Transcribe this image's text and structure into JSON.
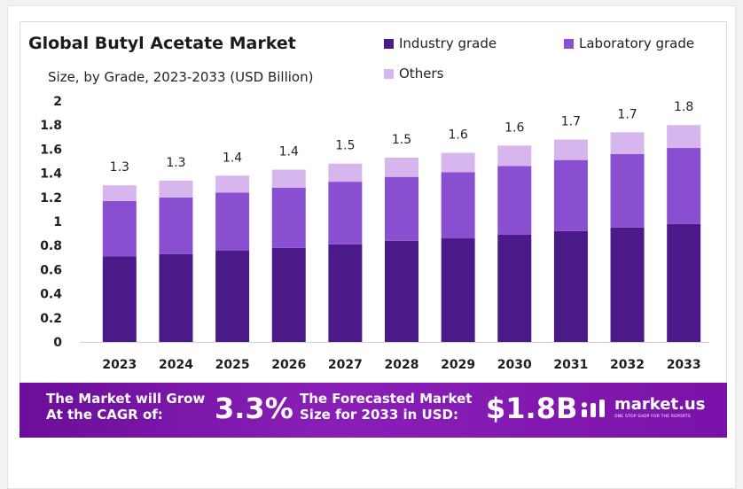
{
  "colors": {
    "industry": "#4b1a89",
    "laboratory": "#8a4fd1",
    "others": "#d7b6ee",
    "footer": "#7a12a9"
  },
  "chart_data": {
    "type": "bar",
    "stacked": true,
    "title": "Global Butyl Acetate Market",
    "subtitle": "Size, by Grade, 2023-2033 (USD Billion)",
    "categories": [
      "2023",
      "2024",
      "2025",
      "2026",
      "2027",
      "2028",
      "2029",
      "2030",
      "2031",
      "2032",
      "2033"
    ],
    "series": [
      {
        "name": "Industry grade",
        "values": [
          0.71,
          0.73,
          0.76,
          0.78,
          0.81,
          0.84,
          0.86,
          0.89,
          0.92,
          0.95,
          0.98
        ]
      },
      {
        "name": "Laboratory grade",
        "values": [
          0.46,
          0.47,
          0.48,
          0.5,
          0.52,
          0.53,
          0.55,
          0.57,
          0.59,
          0.61,
          0.63
        ]
      },
      {
        "name": "Others",
        "values": [
          0.13,
          0.14,
          0.14,
          0.15,
          0.15,
          0.16,
          0.16,
          0.17,
          0.17,
          0.18,
          0.19
        ]
      }
    ],
    "totals_labels": [
      "1.3",
      "1.3",
      "1.4",
      "1.4",
      "1.5",
      "1.5",
      "1.6",
      "1.6",
      "1.7",
      "1.7",
      "1.8"
    ],
    "yticks": [
      "0",
      "0.2",
      "0.4",
      "0.6",
      "0.8",
      "1",
      "1.2",
      "1.4",
      "1.6",
      "1.8",
      "2"
    ],
    "ylim": [
      0,
      2
    ],
    "xlabel": "",
    "ylabel": "",
    "legend_position": "top-right",
    "grid": false
  },
  "footer": {
    "cagr_line1": "The Market will Grow",
    "cagr_line2": "At the CAGR of:",
    "cagr_value": "3.3%",
    "forecast_line1": "The Forecasted Market",
    "forecast_line2": "Size for 2033 in USD:",
    "forecast_value": "$1.8B",
    "brand_name": "market.us",
    "brand_tagline": "ONE STOP SHOP FOR THE REPORTS",
    "brand_icon": "market-us-logo-icon"
  }
}
